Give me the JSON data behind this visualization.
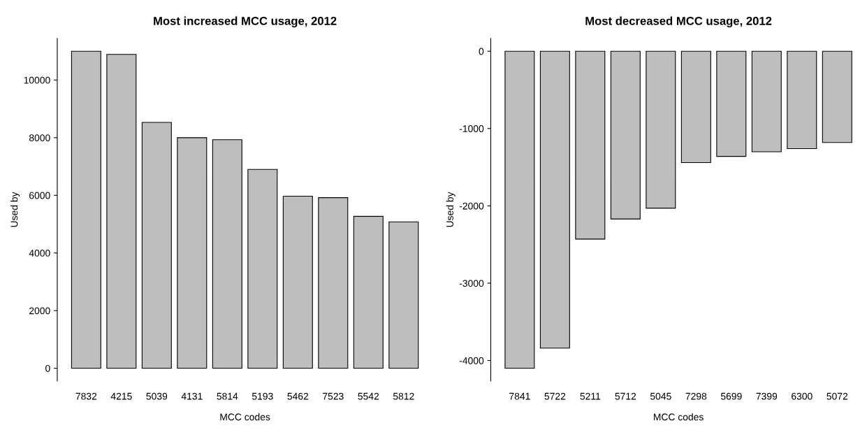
{
  "chart_data": [
    {
      "type": "bar",
      "title": "Most increased MCC usage, 2012",
      "xlabel": "MCC codes",
      "ylabel": "Used by",
      "categories": [
        "7832",
        "4215",
        "5039",
        "4131",
        "5814",
        "5193",
        "5462",
        "7523",
        "5542",
        "5812"
      ],
      "series": [
        {
          "color": "#bebebe",
          "values": [
            11000,
            10890,
            8530,
            8000,
            7930,
            6900,
            5970,
            5920,
            5270,
            5080
          ]
        }
      ],
      "ylim": [
        -440,
        11440
      ],
      "yticks": [
        0,
        2000,
        4000,
        6000,
        8000,
        10000
      ],
      "grid": false,
      "legend": false
    },
    {
      "type": "bar",
      "title": "Most decreased MCC usage, 2012",
      "xlabel": "MCC codes",
      "ylabel": "Used by",
      "categories": [
        "7841",
        "5722",
        "5211",
        "5712",
        "5045",
        "7298",
        "5699",
        "7399",
        "6300",
        "5072"
      ],
      "series": [
        {
          "color": "#bebebe",
          "values": [
            -4100,
            -3840,
            -2430,
            -2170,
            -2030,
            -1440,
            -1360,
            -1300,
            -1260,
            -1180
          ]
        }
      ],
      "ylim": [
        -4264,
        164
      ],
      "yticks": [
        {
          "value": -4000,
          "label": "-4000"
        },
        {
          "value": -3000,
          "label": "-3000"
        },
        {
          "value": -2000,
          "label": "-2000"
        },
        {
          "value": -1000,
          "label": "-1000"
        },
        0
      ],
      "grid": false,
      "legend": false
    }
  ]
}
